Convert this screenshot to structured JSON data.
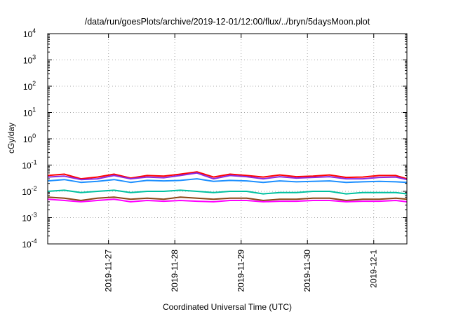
{
  "chart_data": {
    "type": "line",
    "title": "/data/run/goesPlots/archive/2019-12-01/12:00/flux/../bryn/5daysMoon.plot",
    "xlabel": "Coordinated Universal Time (UTC)",
    "ylabel": "cGy/day",
    "y_scale": "log",
    "ylim": [
      0.0001,
      10000
    ],
    "xlim": [
      "2019-11-26T02:00",
      "2019-12-01T12:00"
    ],
    "x_ticks": [
      "2019-11-27",
      "2019-11-28",
      "2019-11-29",
      "2019-11-30",
      "2019-12-1"
    ],
    "y_ticks": [
      {
        "value": 0.0001,
        "base": "10",
        "exp": "-4"
      },
      {
        "value": 0.001,
        "base": "10",
        "exp": "-3"
      },
      {
        "value": 0.01,
        "base": "10",
        "exp": "-2"
      },
      {
        "value": 0.1,
        "base": "10",
        "exp": "-1"
      },
      {
        "value": 1,
        "base": "10",
        "exp": "0"
      },
      {
        "value": 10,
        "base": "10",
        "exp": "1"
      },
      {
        "value": 100,
        "base": "10",
        "exp": "2"
      },
      {
        "value": 1000,
        "base": "10",
        "exp": "3"
      },
      {
        "value": 10000,
        "base": "10",
        "exp": "4"
      }
    ],
    "grid": true,
    "x": [
      "2019-11-26T02:00",
      "2019-11-26T08:00",
      "2019-11-26T14:00",
      "2019-11-26T20:00",
      "2019-11-27T02:00",
      "2019-11-27T08:00",
      "2019-11-27T14:00",
      "2019-11-27T20:00",
      "2019-11-28T02:00",
      "2019-11-28T08:00",
      "2019-11-28T14:00",
      "2019-11-28T20:00",
      "2019-11-29T02:00",
      "2019-11-29T08:00",
      "2019-11-29T14:00",
      "2019-11-29T20:00",
      "2019-11-30T02:00",
      "2019-11-30T08:00",
      "2019-11-30T14:00",
      "2019-11-30T20:00",
      "2019-12-01T02:00",
      "2019-12-01T08:00",
      "2019-12-01T12:00"
    ],
    "series": [
      {
        "color": "#ff0000",
        "values": [
          0.04,
          0.045,
          0.03,
          0.035,
          0.045,
          0.032,
          0.04,
          0.038,
          0.045,
          0.055,
          0.035,
          0.045,
          0.04,
          0.035,
          0.042,
          0.036,
          0.038,
          0.042,
          0.034,
          0.035,
          0.04,
          0.04,
          0.03
        ]
      },
      {
        "color": "#8a2be2",
        "values": [
          0.035,
          0.038,
          0.028,
          0.03,
          0.04,
          0.03,
          0.035,
          0.033,
          0.04,
          0.05,
          0.03,
          0.04,
          0.036,
          0.03,
          0.036,
          0.032,
          0.034,
          0.036,
          0.03,
          0.03,
          0.034,
          0.035,
          0.028
        ]
      },
      {
        "color": "#1e90ff",
        "values": [
          0.025,
          0.028,
          0.022,
          0.024,
          0.028,
          0.022,
          0.026,
          0.025,
          0.026,
          0.03,
          0.024,
          0.026,
          0.025,
          0.022,
          0.025,
          0.023,
          0.024,
          0.025,
          0.022,
          0.023,
          0.024,
          0.023,
          0.022
        ]
      },
      {
        "color": "#00c0a0",
        "values": [
          0.01,
          0.011,
          0.009,
          0.01,
          0.011,
          0.009,
          0.01,
          0.01,
          0.011,
          0.01,
          0.009,
          0.01,
          0.01,
          0.008,
          0.009,
          0.009,
          0.01,
          0.01,
          0.008,
          0.009,
          0.009,
          0.009,
          0.008
        ]
      },
      {
        "color": "#8b4513",
        "values": [
          0.006,
          0.0055,
          0.0045,
          0.0055,
          0.006,
          0.005,
          0.0055,
          0.005,
          0.006,
          0.0055,
          0.005,
          0.0055,
          0.0055,
          0.0045,
          0.005,
          0.005,
          0.0055,
          0.0055,
          0.0045,
          0.005,
          0.005,
          0.0055,
          0.005
        ]
      },
      {
        "color": "#ff00ff",
        "values": [
          0.005,
          0.0045,
          0.004,
          0.0045,
          0.005,
          0.004,
          0.0045,
          0.0042,
          0.0045,
          0.0042,
          0.004,
          0.0045,
          0.0045,
          0.004,
          0.0042,
          0.0042,
          0.0045,
          0.0045,
          0.004,
          0.0042,
          0.0042,
          0.0045,
          0.004
        ]
      }
    ]
  }
}
